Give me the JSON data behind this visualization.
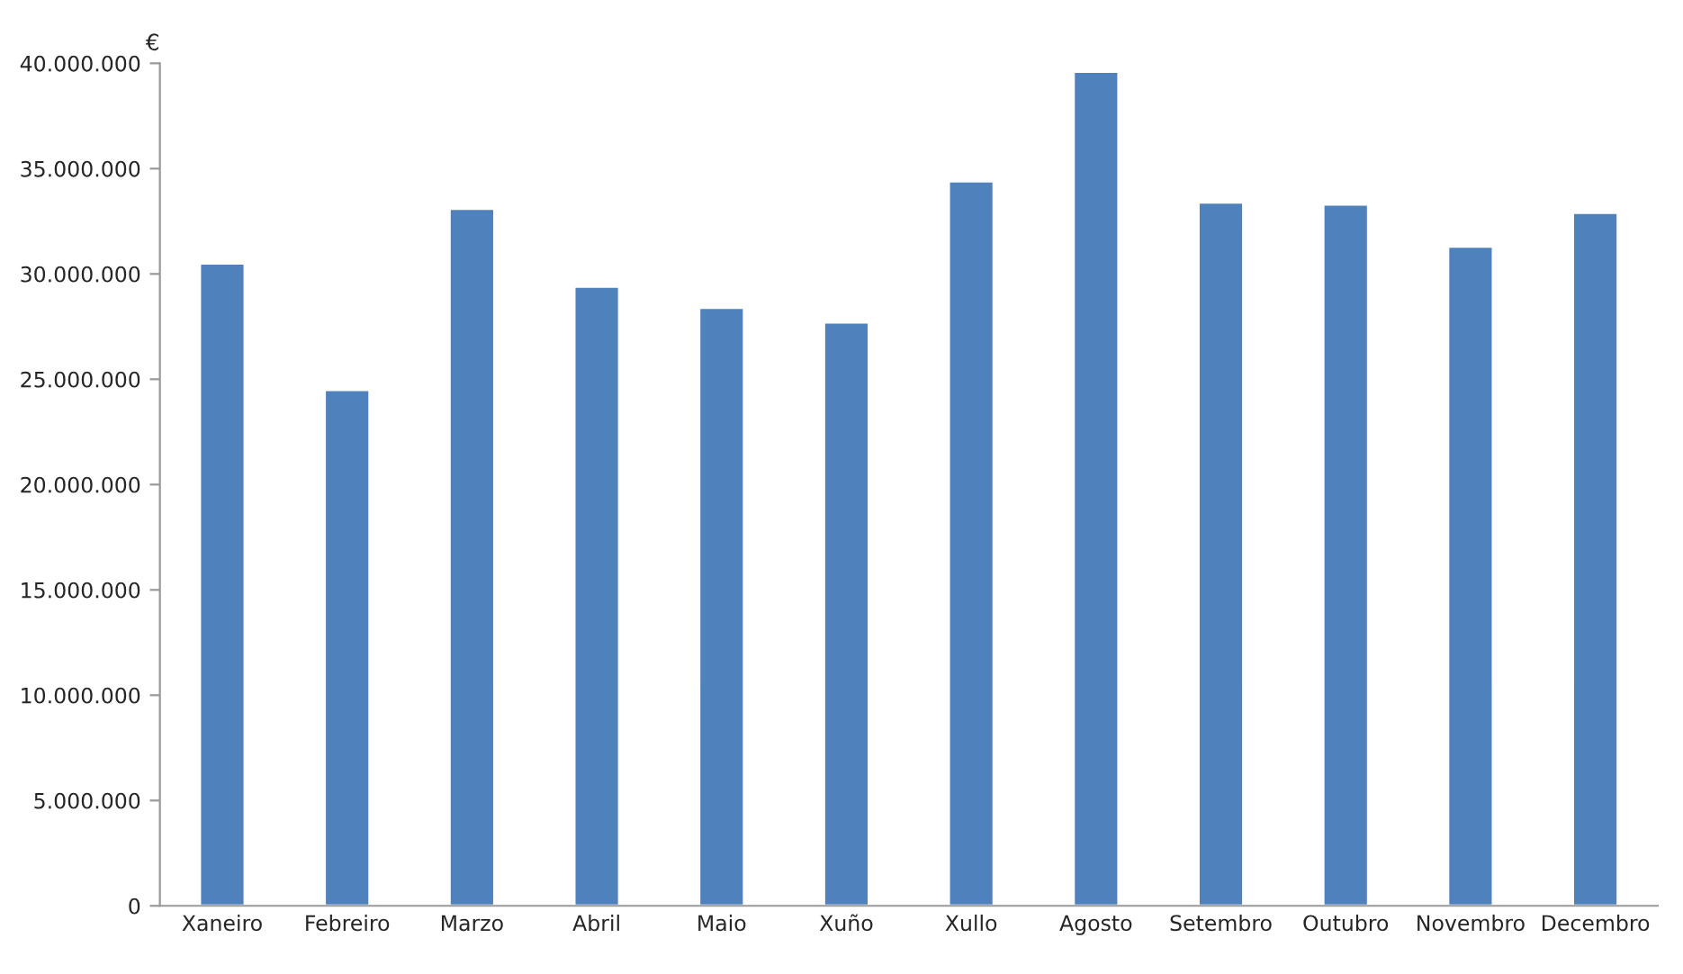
{
  "chart_data": {
    "type": "bar",
    "ylabel": "€",
    "categories": [
      "Xaneiro",
      "Febreiro",
      "Marzo",
      "Abril",
      "Maio",
      "Xuño",
      "Xullo",
      "Agosto",
      "Setembro",
      "Outubro",
      "Novembro",
      "Decembro"
    ],
    "values": [
      30500000,
      24500000,
      33100000,
      29400000,
      28400000,
      27700000,
      34400000,
      39600000,
      33400000,
      33300000,
      31300000,
      32900000
    ],
    "color": "#4f81bd",
    "ylim": [
      0,
      40000000
    ],
    "yticks": [
      0,
      {
        "value": 5000000,
        "label": "5.000.000"
      },
      {
        "value": 10000000,
        "label": "10.000.000"
      },
      {
        "value": 15000000,
        "label": "15.000.000"
      },
      {
        "value": 20000000,
        "label": "20.000.000"
      },
      {
        "value": 25000000,
        "label": "25.000.000"
      },
      {
        "value": 30000000,
        "label": "30.000.000"
      },
      {
        "value": 35000000,
        "label": "35.000.000"
      },
      {
        "value": 40000000,
        "label": "40.000.000"
      }
    ],
    "grid": false,
    "legend": false
  }
}
